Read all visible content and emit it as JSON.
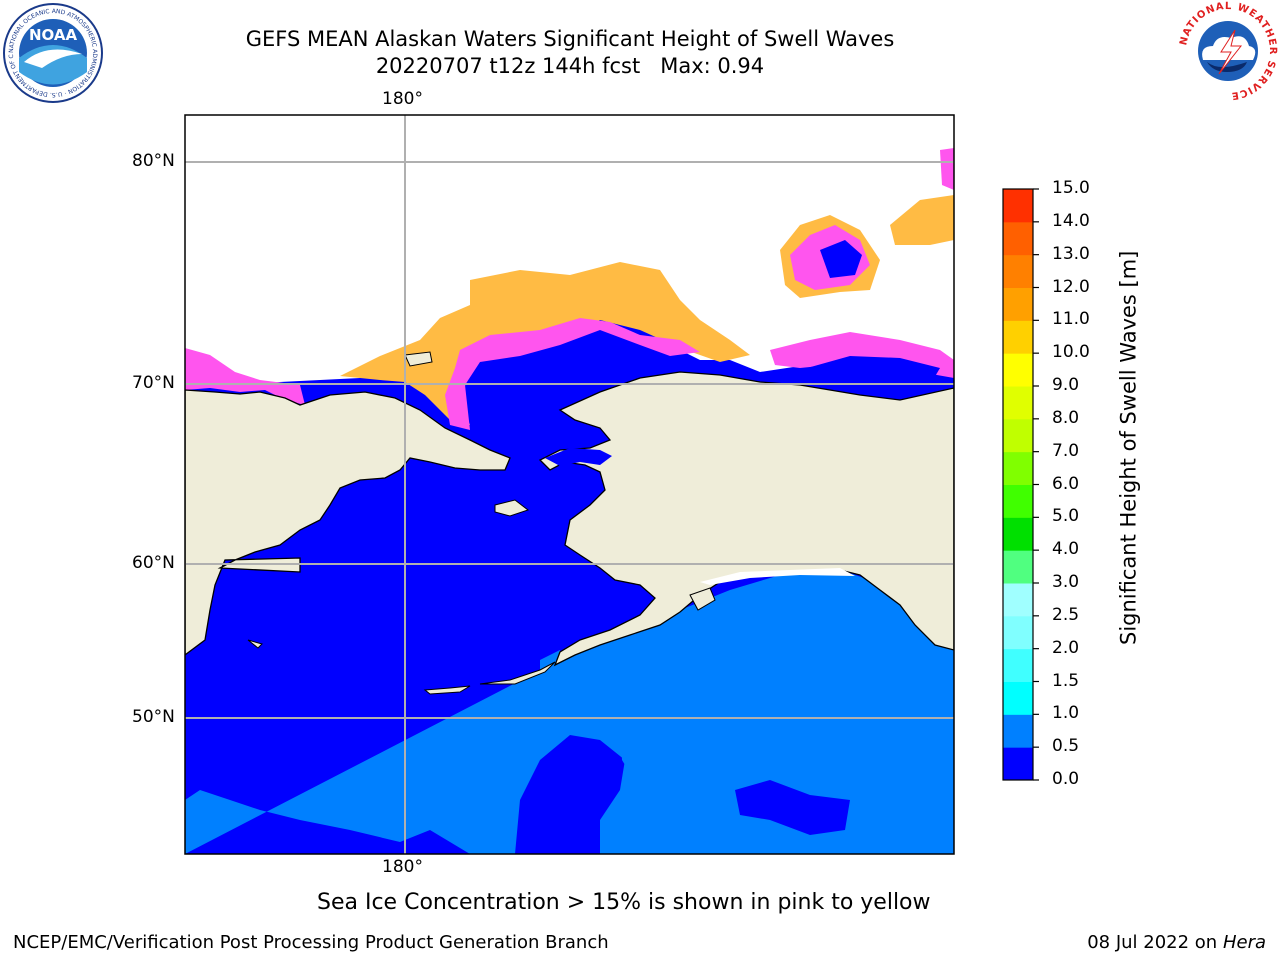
{
  "title": {
    "line1": "GEFS MEAN Alaskan Waters Significant Height of Swell Waves",
    "line2": "20220707 t12z 144h fcst   Max: 0.94"
  },
  "map": {
    "top_lon_label": "180°",
    "bottom_lon_label": "180°",
    "lat_labels": [
      "80°N",
      "70°N",
      "60°N",
      "50°N"
    ],
    "colors": {
      "land": "#efedd9",
      "ocean_low": "#0000ff",
      "ocean_mid": "#0080ff",
      "ice_pink": "#ff66ff",
      "ice_yellow": "#ffcc44",
      "grid": "#b0b0b0"
    }
  },
  "colorbar": {
    "label": "Significant Height of Swell Waves [m]",
    "ticks": [
      "0.0",
      "0.5",
      "1.0",
      "1.5",
      "2.0",
      "2.5",
      "3.0",
      "4.0",
      "5.0",
      "6.0",
      "7.0",
      "8.0",
      "9.0",
      "10.0",
      "11.0",
      "12.0",
      "13.0",
      "14.0",
      "15.0"
    ],
    "colors": [
      "#0000ff",
      "#0080ff",
      "#00ffff",
      "#40ffff",
      "#80ffff",
      "#a0ffff",
      "#50ff80",
      "#00e000",
      "#40ff00",
      "#80ff00",
      "#c0ff00",
      "#e0ff00",
      "#ffff00",
      "#ffd000",
      "#ffa000",
      "#ff8000",
      "#ff6000",
      "#ff3000",
      "#ff0000"
    ]
  },
  "note": "Sea Ice Concentration > 15% is shown in pink to yellow",
  "footer": {
    "left": "NCEP/EMC/Verification Post Processing Product Generation Branch",
    "right_prefix": "08 Jul 2022 on ",
    "right_machine": "Hera"
  },
  "logos": {
    "noaa_text": "NOAA",
    "noaa_ring": "NATIONAL OCEANIC AND ATMOSPHERIC ADMINISTRATION · U.S. DEPARTMENT OF COMMERCE",
    "nws_ring": "NATIONAL WEATHER SERVICE"
  }
}
